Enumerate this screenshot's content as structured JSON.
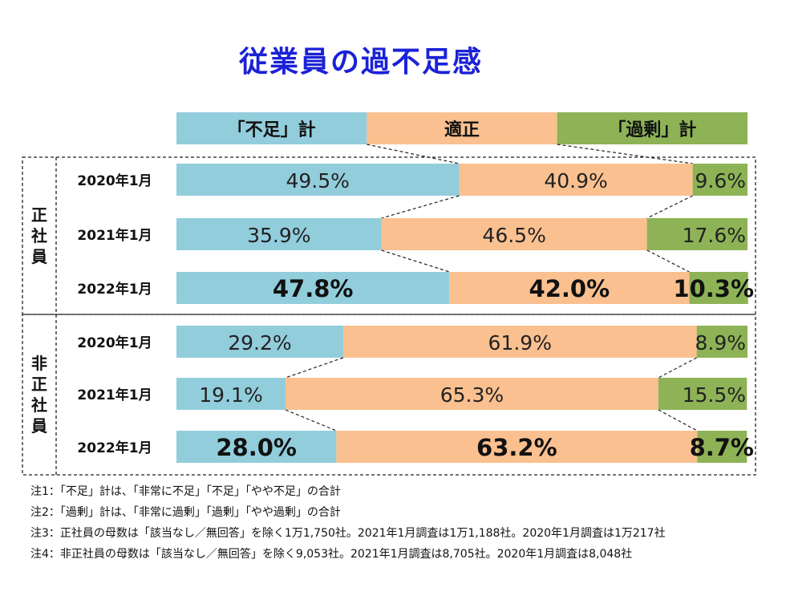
{
  "title": "従業員の過不足感",
  "chart_data": {
    "type": "bar",
    "stacked": true,
    "orientation": "horizontal",
    "percent_scale": true,
    "legend_position": "top",
    "series": [
      {
        "name": "「不足」計",
        "color": "#92cddc"
      },
      {
        "name": "適正",
        "color": "#fac090"
      },
      {
        "name": "「過剰」計",
        "color": "#8db356"
      }
    ],
    "groups": [
      {
        "name": "正社員",
        "rows": [
          {
            "label": "2020年1月",
            "values": [
              49.5,
              40.9,
              9.6
            ],
            "value_labels": [
              "49.5%",
              "40.9%",
              "9.6%"
            ],
            "bold": false
          },
          {
            "label": "2021年1月",
            "values": [
              35.9,
              46.5,
              17.6
            ],
            "value_labels": [
              "35.9%",
              "46.5%",
              "17.6%"
            ],
            "bold": false
          },
          {
            "label": "2022年1月",
            "values": [
              47.8,
              42.0,
              10.3
            ],
            "value_labels": [
              "47.8%",
              "42.0%",
              "10.3%"
            ],
            "bold": true
          }
        ]
      },
      {
        "name": "非正社員",
        "rows": [
          {
            "label": "2020年1月",
            "values": [
              29.2,
              61.9,
              8.9
            ],
            "value_labels": [
              "29.2%",
              "61.9%",
              "8.9%"
            ],
            "bold": false
          },
          {
            "label": "2021年1月",
            "values": [
              19.1,
              65.3,
              15.5
            ],
            "value_labels": [
              "19.1%",
              "65.3%",
              "15.5%"
            ],
            "bold": false
          },
          {
            "label": "2022年1月",
            "values": [
              28.0,
              63.2,
              8.7
            ],
            "value_labels": [
              "28.0%",
              "63.2%",
              "8.7%"
            ],
            "bold": true
          }
        ]
      }
    ]
  },
  "notes": [
    "注1：「不足」計は、「非常に不足」「不足」「やや不足」の合計",
    "注2：「過剰」計は、「非常に過剰」「過剰」「やや過剰」の合計",
    "注3：正社員の母数は「該当なし／無回答」を除く1万1,750社。2021年1月調査は1万1,188社。2020年1月調査は1万217社",
    "注4：非正社員の母数は「該当なし／無回答」を除く9,053社。2021年1月調査は8,705社。2020年1月調査は8,048社"
  ]
}
